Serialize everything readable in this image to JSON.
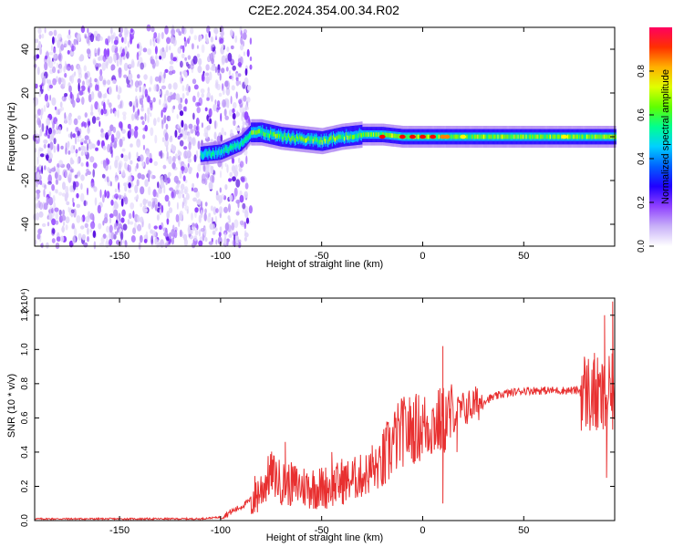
{
  "title": "C2E2.2024.354.00.34.R02",
  "chart_data": [
    {
      "type": "heatmap",
      "xlabel": "Height of straight line (km)",
      "ylabel": "Frequency (Hz)",
      "xlim": [
        -192,
        95
      ],
      "ylim": [
        -50,
        50
      ],
      "xticks": [
        -150,
        -100,
        -50,
        0,
        50
      ],
      "yticks": [
        -40,
        -20,
        0,
        20,
        40
      ],
      "colorbar": {
        "label": "Normalized spectral amplitude",
        "range": [
          0,
          1
        ],
        "ticks": [
          "0.0",
          "0.2",
          "0.4",
          "0.6",
          "0.8"
        ],
        "colors": [
          "#ffffff",
          "#d8c8f8",
          "#8f40ff",
          "#4000ff",
          "#0060ff",
          "#00c8ff",
          "#00ff80",
          "#80ff00",
          "#ffff00",
          "#ff8000",
          "#ff0000",
          "#ff0080"
        ]
      },
      "ridge": {
        "x": [
          -110,
          -100,
          -90,
          -85,
          -80,
          -70,
          -60,
          -50,
          -40,
          -30,
          -20,
          -10,
          0,
          20,
          50,
          80,
          95
        ],
        "y": [
          -8,
          -7,
          -3,
          2,
          2,
          0,
          -1,
          -2,
          0,
          1,
          1,
          0,
          0,
          0,
          0,
          0,
          0
        ]
      },
      "noise_region_x": [
        -192,
        -85
      ]
    },
    {
      "type": "line",
      "xlabel": "Height of straight line (km)",
      "ylabel": "SNR (10 * v/v)",
      "y_multiplier": "(x10⁴)",
      "xlim": [
        -192,
        95
      ],
      "ylim": [
        0,
        1.3
      ],
      "xticks": [
        -150,
        -100,
        -50,
        0,
        50
      ],
      "yticks": [
        0.0,
        0.2,
        0.4,
        0.6,
        0.8,
        1.0,
        1.2
      ],
      "color": "#e83030",
      "envelope": {
        "x": [
          -192,
          -110,
          -100,
          -95,
          -90,
          -85,
          -80,
          -75,
          -70,
          -60,
          -50,
          -40,
          -30,
          -20,
          -15,
          -10,
          0,
          10,
          20,
          30,
          40,
          50,
          60,
          70,
          80,
          85,
          90,
          95
        ],
        "y": [
          0.01,
          0.01,
          0.02,
          0.05,
          0.08,
          0.12,
          0.18,
          0.28,
          0.22,
          0.2,
          0.19,
          0.22,
          0.26,
          0.32,
          0.45,
          0.52,
          0.55,
          0.58,
          0.65,
          0.7,
          0.74,
          0.76,
          0.76,
          0.76,
          0.76,
          0.72,
          0.7,
          0.75
        ]
      },
      "spikes": [
        {
          "x": -68,
          "y": 0.46
        },
        {
          "x": -45,
          "y": 0.4
        },
        {
          "x": -40,
          "y": 0.36
        },
        {
          "x": -25,
          "y": 0.44
        },
        {
          "x": -17,
          "y": 0.56
        },
        {
          "x": -10,
          "y": 0.7
        },
        {
          "x": 10,
          "y": 1.02
        },
        {
          "x": 10,
          "y": 0.1
        },
        {
          "x": 17,
          "y": 0.4
        },
        {
          "x": 85,
          "y": 0.98
        },
        {
          "x": 90,
          "y": 1.2
        },
        {
          "x": 91,
          "y": 0.25
        },
        {
          "x": 94,
          "y": 1.28
        }
      ]
    }
  ]
}
